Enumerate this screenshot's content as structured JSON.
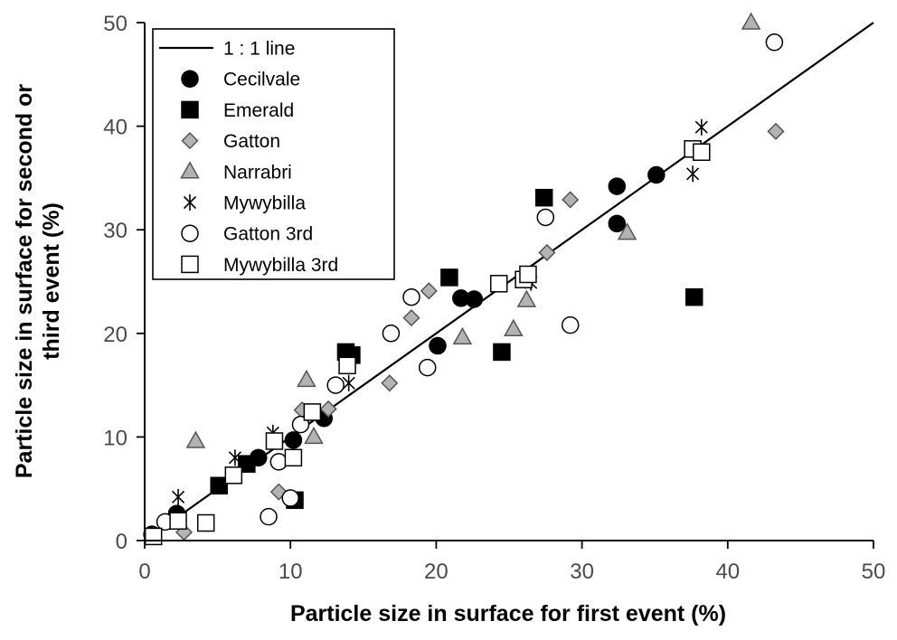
{
  "chart_data": {
    "type": "scatter",
    "xlabel": "Particle size in surface for first event (%)",
    "ylabel_lines": [
      "Particle size in surface for second or",
      "third event (%)"
    ],
    "xlim": [
      0,
      50
    ],
    "ylim": [
      0,
      50
    ],
    "xticks": [
      0,
      10,
      20,
      30,
      40,
      50
    ],
    "yticks": [
      0,
      10,
      20,
      30,
      40,
      50
    ],
    "grid": false,
    "legend_position": "top-left",
    "reference_line": {
      "name": "1 : 1 line",
      "x": [
        0,
        50
      ],
      "y": [
        0,
        50
      ]
    },
    "series": [
      {
        "name": "Cecilvale",
        "marker": "circle",
        "fill": "#000000",
        "stroke": "#000000",
        "points": [
          [
            0.5,
            0.6
          ],
          [
            2.2,
            2.6
          ],
          [
            7.8,
            8.0
          ],
          [
            10.2,
            9.7
          ],
          [
            12.3,
            11.8
          ],
          [
            20.1,
            18.8
          ],
          [
            21.7,
            23.4
          ],
          [
            22.6,
            23.3
          ],
          [
            32.4,
            34.2
          ],
          [
            32.4,
            30.6
          ],
          [
            35.1,
            35.3
          ]
        ]
      },
      {
        "name": "Emerald",
        "marker": "square",
        "fill": "#000000",
        "stroke": "#000000",
        "points": [
          [
            5.1,
            5.3
          ],
          [
            7.0,
            7.4
          ],
          [
            10.3,
            3.9
          ],
          [
            13.8,
            18.2
          ],
          [
            14.2,
            17.9
          ],
          [
            20.9,
            25.4
          ],
          [
            24.5,
            18.2
          ],
          [
            27.4,
            33.1
          ],
          [
            37.7,
            23.5
          ]
        ]
      },
      {
        "name": "Gatton",
        "marker": "diamond",
        "fill": "#b3b3b3",
        "stroke": "#555555",
        "points": [
          [
            0.6,
            0.5
          ],
          [
            2.7,
            0.8
          ],
          [
            9.2,
            4.7
          ],
          [
            10.8,
            12.6
          ],
          [
            12.6,
            12.7
          ],
          [
            16.8,
            15.2
          ],
          [
            18.3,
            21.5
          ],
          [
            19.5,
            24.1
          ],
          [
            27.6,
            27.8
          ],
          [
            29.2,
            32.9
          ],
          [
            43.3,
            39.5
          ]
        ]
      },
      {
        "name": "Narrabri",
        "marker": "triangle",
        "fill": "#b3b3b3",
        "stroke": "#555555",
        "points": [
          [
            3.5,
            9.6
          ],
          [
            11.1,
            15.5
          ],
          [
            11.6,
            10.0
          ],
          [
            21.8,
            19.6
          ],
          [
            25.3,
            20.4
          ],
          [
            26.2,
            23.2
          ],
          [
            33.1,
            29.7
          ],
          [
            41.6,
            50.0
          ]
        ]
      },
      {
        "name": "Mywybilla",
        "marker": "asterisk",
        "fill": "none",
        "stroke": "#000000",
        "points": [
          [
            2.3,
            4.2
          ],
          [
            6.2,
            8.0
          ],
          [
            8.8,
            10.4
          ],
          [
            14.0,
            15.2
          ],
          [
            26.5,
            24.9
          ],
          [
            37.6,
            35.4
          ],
          [
            38.2,
            39.9
          ]
        ]
      },
      {
        "name": "Gatton 3rd",
        "marker": "circle",
        "fill": "#ffffff",
        "stroke": "#000000",
        "points": [
          [
            1.4,
            1.8
          ],
          [
            8.5,
            2.3
          ],
          [
            9.2,
            7.6
          ],
          [
            10.0,
            4.1
          ],
          [
            10.7,
            11.2
          ],
          [
            13.1,
            15.0
          ],
          [
            16.9,
            20.0
          ],
          [
            18.3,
            23.5
          ],
          [
            19.4,
            16.7
          ],
          [
            27.5,
            31.2
          ],
          [
            29.2,
            20.8
          ],
          [
            43.2,
            48.1
          ]
        ]
      },
      {
        "name": "Mywybilla 3rd",
        "marker": "square",
        "fill": "#ffffff",
        "stroke": "#000000",
        "points": [
          [
            0.6,
            0.4
          ],
          [
            2.3,
            1.9
          ],
          [
            4.2,
            1.7
          ],
          [
            6.1,
            6.3
          ],
          [
            8.9,
            9.6
          ],
          [
            10.2,
            8.0
          ],
          [
            11.5,
            12.4
          ],
          [
            13.9,
            16.9
          ],
          [
            24.3,
            24.8
          ],
          [
            26.0,
            25.2
          ],
          [
            26.3,
            25.7
          ],
          [
            37.6,
            37.8
          ],
          [
            38.2,
            37.5
          ]
        ]
      }
    ]
  }
}
